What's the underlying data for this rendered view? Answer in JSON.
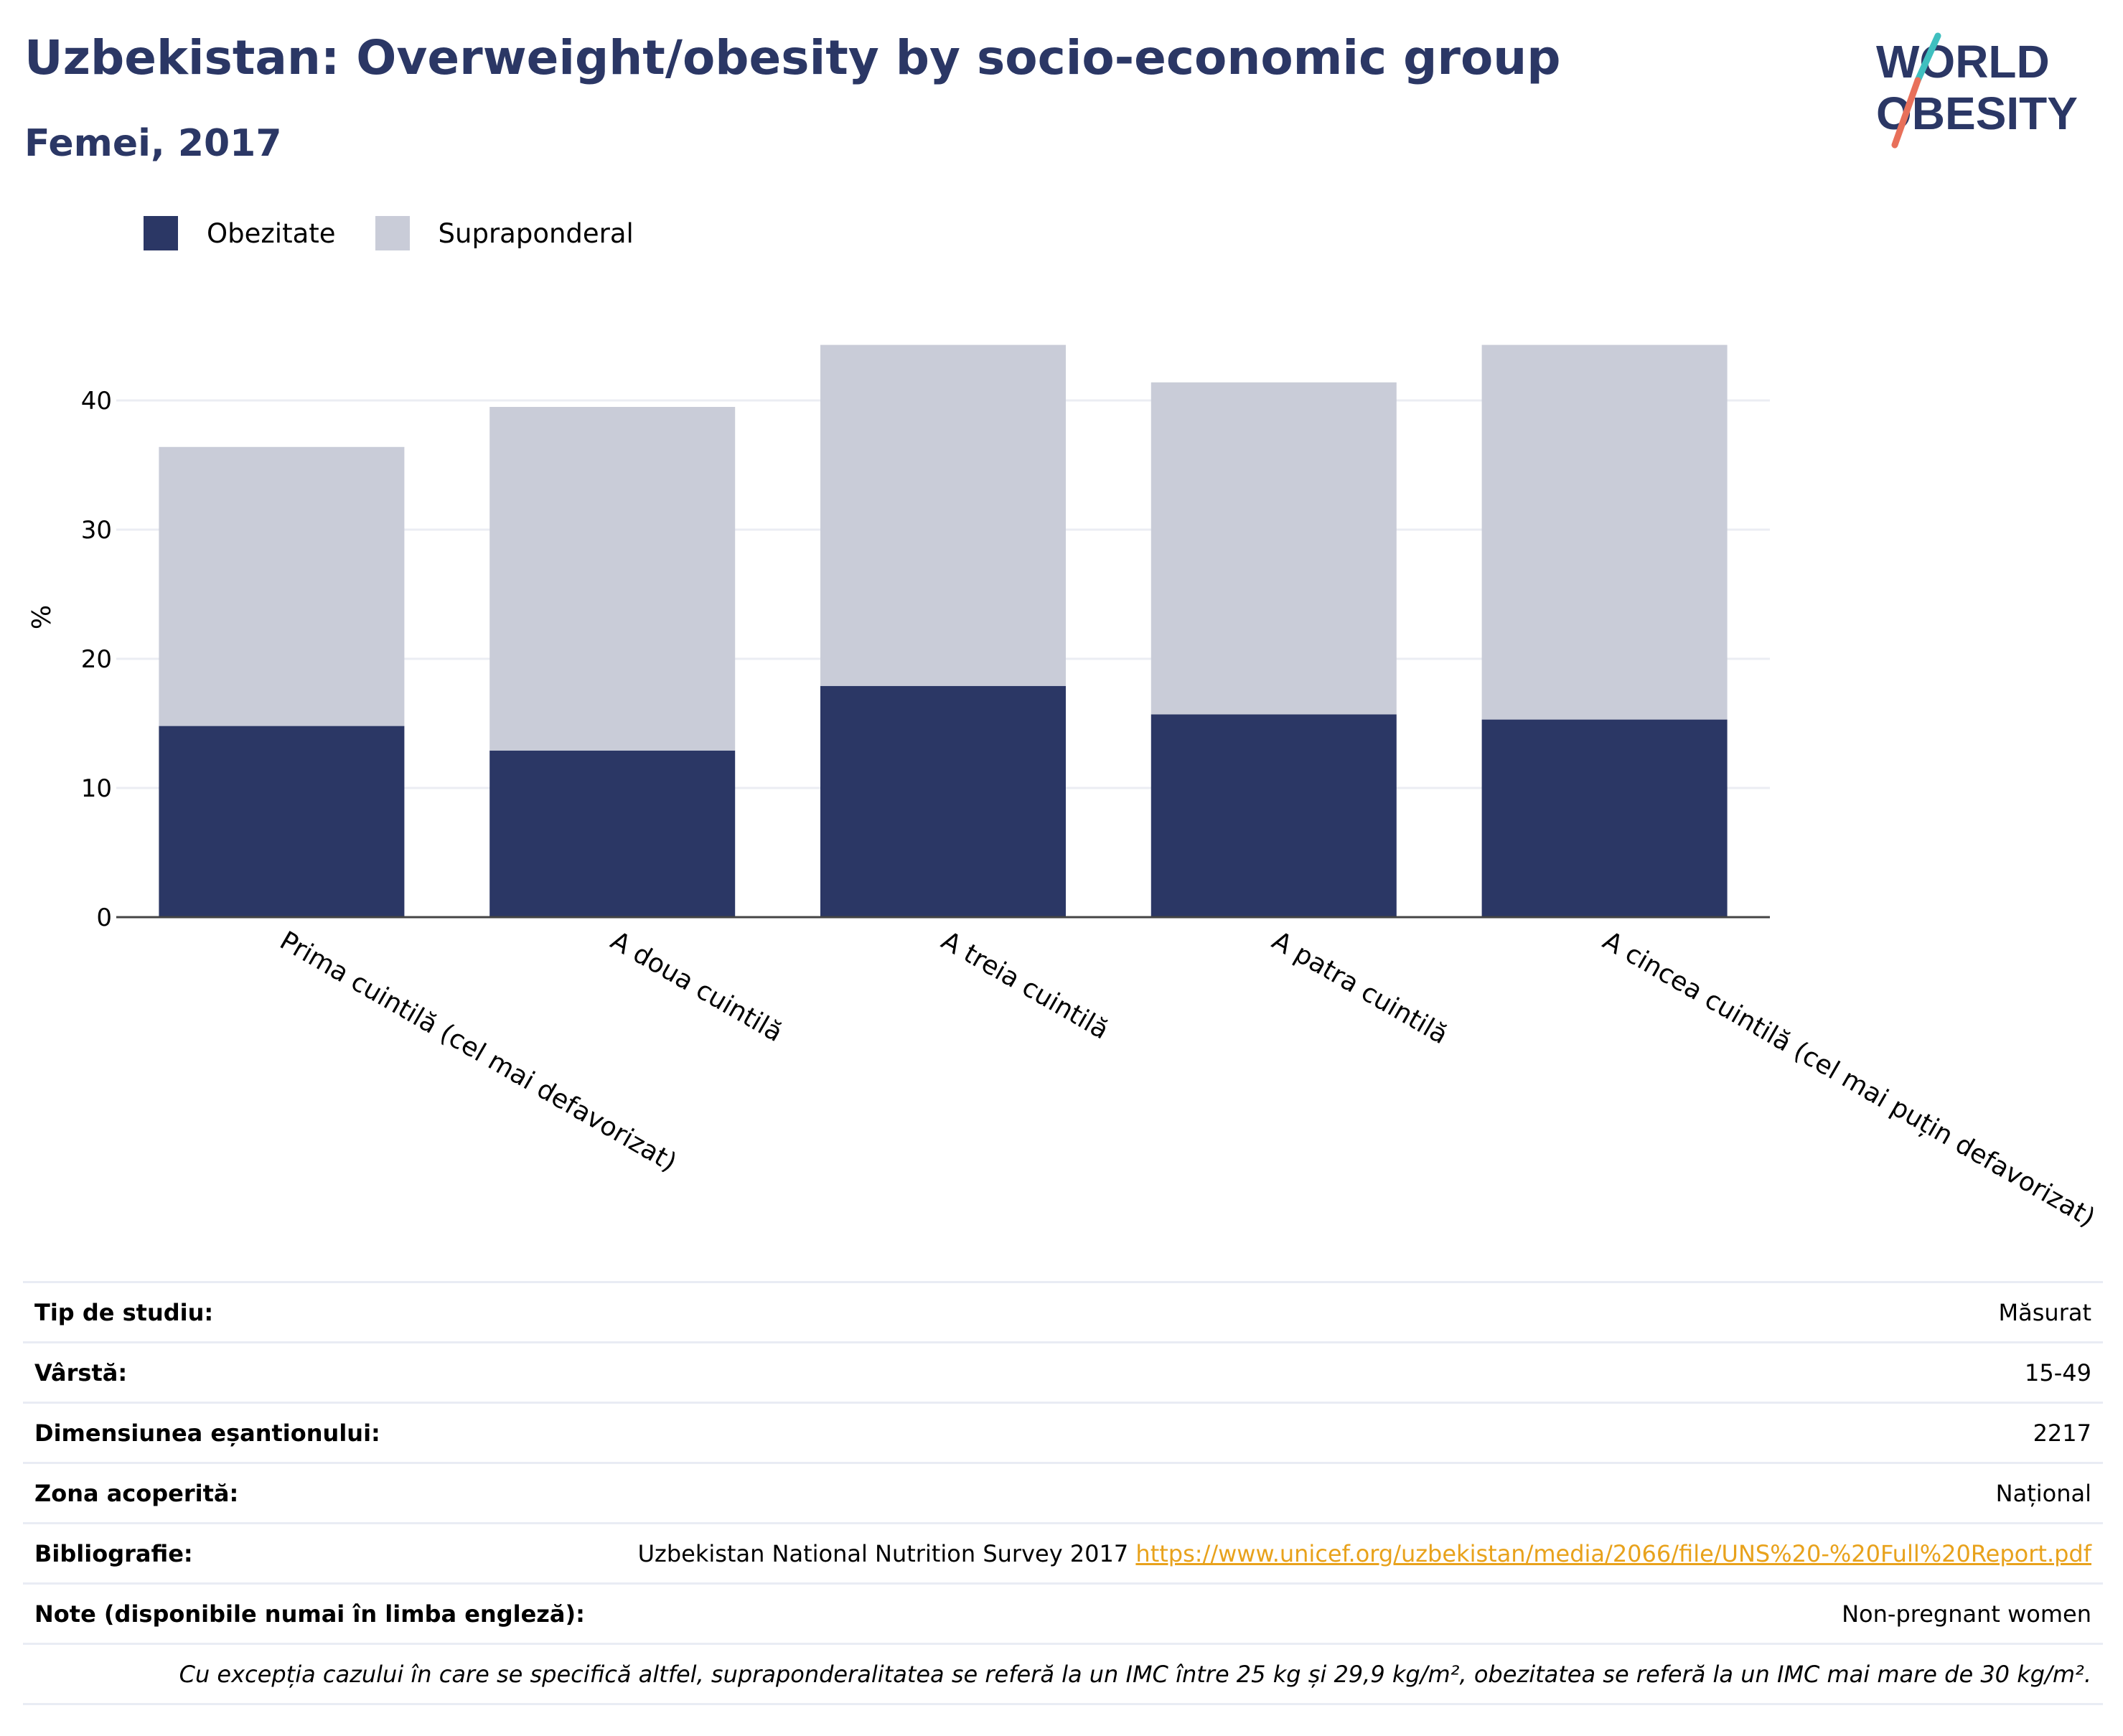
{
  "header": {
    "title": "Uzbekistan: Overweight/obesity by socio-economic group",
    "subtitle": "Femei, 2017",
    "logo_line1": "WORLD",
    "logo_line2": "OBESITY"
  },
  "colors": {
    "obesity": "#2b3765",
    "overweight": "#c9ccd8",
    "title": "#2b3765",
    "link": "#e8a21c",
    "logo_teal": "#3fbfbf",
    "logo_coral": "#e8705a"
  },
  "chart_data": {
    "type": "bar",
    "stacked": true,
    "categories": [
      "Prima cuintilă (cel mai defavorizat)",
      "A doua cuintilă",
      "A treia cuintilă",
      "A patra cuintilă",
      "A cincea cuintilă (cel mai puțin defavorizat)"
    ],
    "series": [
      {
        "name": "Obezitate",
        "values": [
          14.8,
          12.9,
          17.9,
          15.7,
          15.3
        ]
      },
      {
        "name": "Supraponderal",
        "values": [
          21.6,
          26.6,
          26.4,
          25.7,
          29.0
        ]
      }
    ],
    "ylabel": "%",
    "xlabel": "",
    "ylim": [
      0,
      46
    ],
    "yticks": [
      0,
      10,
      20,
      30,
      40
    ],
    "grid": true,
    "legend_position": "top-left"
  },
  "info": {
    "study_type_label": "Tip de studiu:",
    "study_type_value": "Măsurat",
    "age_label": "Vârstă:",
    "age_value": "15-49",
    "sample_label": "Dimensiunea eșantionului:",
    "sample_value": "2217",
    "area_label": "Zona acoperită:",
    "area_value": "Național",
    "biblio_label": "Bibliografie:",
    "biblio_text": "Uzbekistan National Nutrition Survey 2017",
    "biblio_link": "https://www.unicef.org/uzbekistan/media/2066/file/UNS%20-%20Full%20Report.pdf",
    "notes_label": "Note (disponibile numai în limba engleză):",
    "notes_value": "Non-pregnant women",
    "footnote": "Cu excepția cazului în care se specifică altfel, supraponderalitatea se referă la un IMC între 25 kg și 29,9 kg/m², obezitatea se referă la un IMC mai mare de 30 kg/m²."
  }
}
